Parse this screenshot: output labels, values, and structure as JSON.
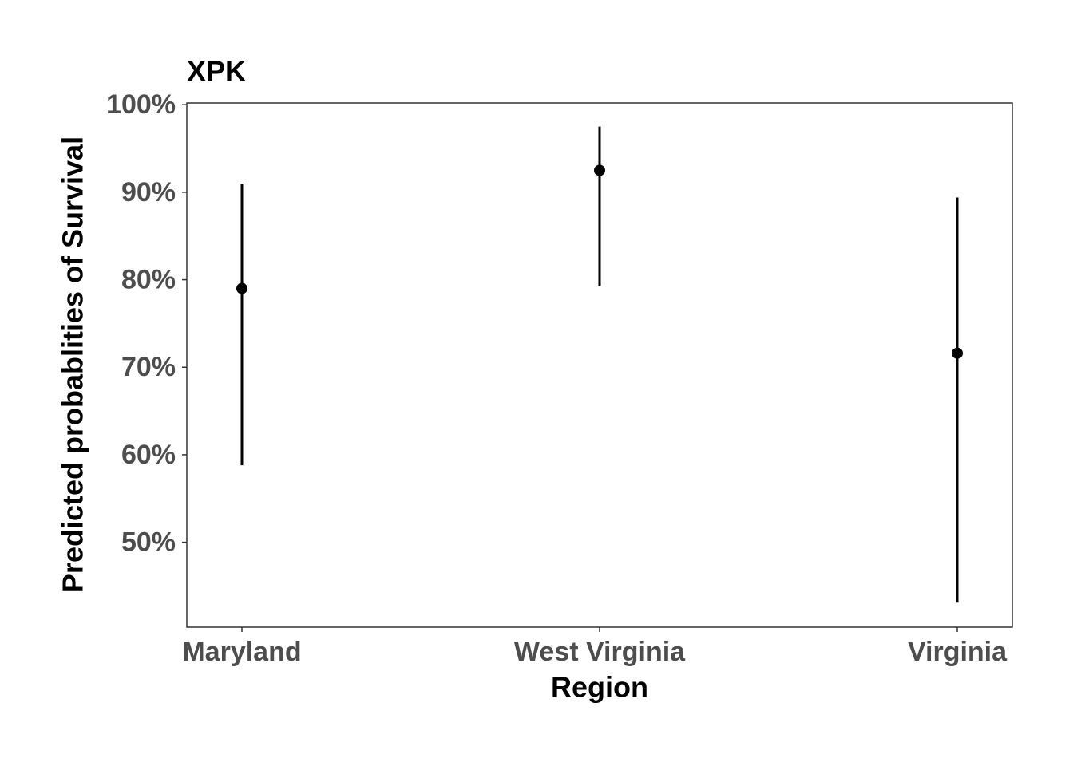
{
  "chart_data": {
    "type": "pointrange",
    "title": "XPK",
    "x_label": "Region",
    "y_label": "Predicted probablities of Survival",
    "categories": [
      "Maryland",
      "West Virginia",
      "Virginia"
    ],
    "values": [
      79.0,
      92.5,
      71.6
    ],
    "lower": [
      58.8,
      79.3,
      43.1
    ],
    "upper": [
      90.9,
      97.5,
      89.4
    ],
    "color": "#000000",
    "ylim": [
      40.3,
      100.2
    ],
    "yticks": [
      {
        "value": 50,
        "label": "50%"
      },
      {
        "value": 60,
        "label": "60%"
      },
      {
        "value": 70,
        "label": "70%"
      },
      {
        "value": 80,
        "label": "80%"
      },
      {
        "value": 90,
        "label": "90%"
      },
      {
        "value": 100,
        "label": "100%"
      }
    ],
    "grid": false
  }
}
